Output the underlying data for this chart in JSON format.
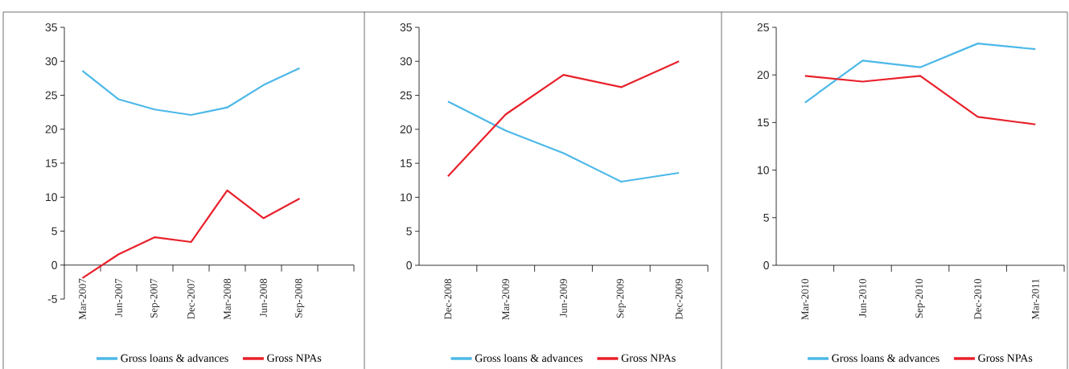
{
  "chart_data": [
    {
      "type": "line",
      "categories": [
        "Mar-2007",
        "Jun-2007",
        "Sep-2007",
        "Dec-2007",
        "Mar-2008",
        "Jun-2008",
        "Sep-2008",
        null
      ],
      "ylim": [
        -5,
        35
      ],
      "yticks": [
        -5,
        0,
        5,
        10,
        15,
        20,
        25,
        30,
        35
      ],
      "legend": "bottom",
      "grid": false,
      "series": [
        {
          "name": "Gross loans & advances",
          "color": "#4db8e8",
          "values": [
            28.6,
            24.4,
            22.9,
            22.1,
            23.2,
            26.5,
            29.0,
            null
          ]
        },
        {
          "name": "Gross NPAs",
          "color": "#e8202a",
          "values": [
            -1.9,
            1.6,
            4.1,
            3.4,
            11.0,
            6.9,
            9.8,
            null
          ]
        }
      ]
    },
    {
      "type": "line",
      "categories": [
        "Dec-2008",
        "Mar-2009",
        "Jun-2009",
        "Sep-2009",
        "Dec-2009"
      ],
      "ylim": [
        0,
        35
      ],
      "yticks": [
        0,
        5,
        10,
        15,
        20,
        25,
        30,
        35
      ],
      "legend": "bottom",
      "grid": false,
      "series": [
        {
          "name": "Gross loans & advances",
          "color": "#4db8e8",
          "values": [
            24.1,
            19.8,
            16.5,
            12.3,
            13.6
          ]
        },
        {
          "name": "Gross NPAs",
          "color": "#e8202a",
          "values": [
            13.1,
            22.2,
            28.0,
            26.2,
            30.0
          ]
        }
      ]
    },
    {
      "type": "line",
      "categories": [
        "Mar-2010",
        "Jun-2010",
        "Sep-2010",
        "Dec-2010",
        "Mar-2011"
      ],
      "ylim": [
        0,
        25
      ],
      "yticks": [
        0,
        5,
        10,
        15,
        20,
        25
      ],
      "legend": "bottom",
      "grid": false,
      "series": [
        {
          "name": "Gross loans & advances",
          "color": "#4db8e8",
          "values": [
            17.1,
            21.5,
            20.8,
            23.3,
            22.7
          ]
        },
        {
          "name": "Gross NPAs",
          "color": "#e8202a",
          "values": [
            19.9,
            19.3,
            19.9,
            15.6,
            14.8
          ]
        }
      ]
    }
  ]
}
